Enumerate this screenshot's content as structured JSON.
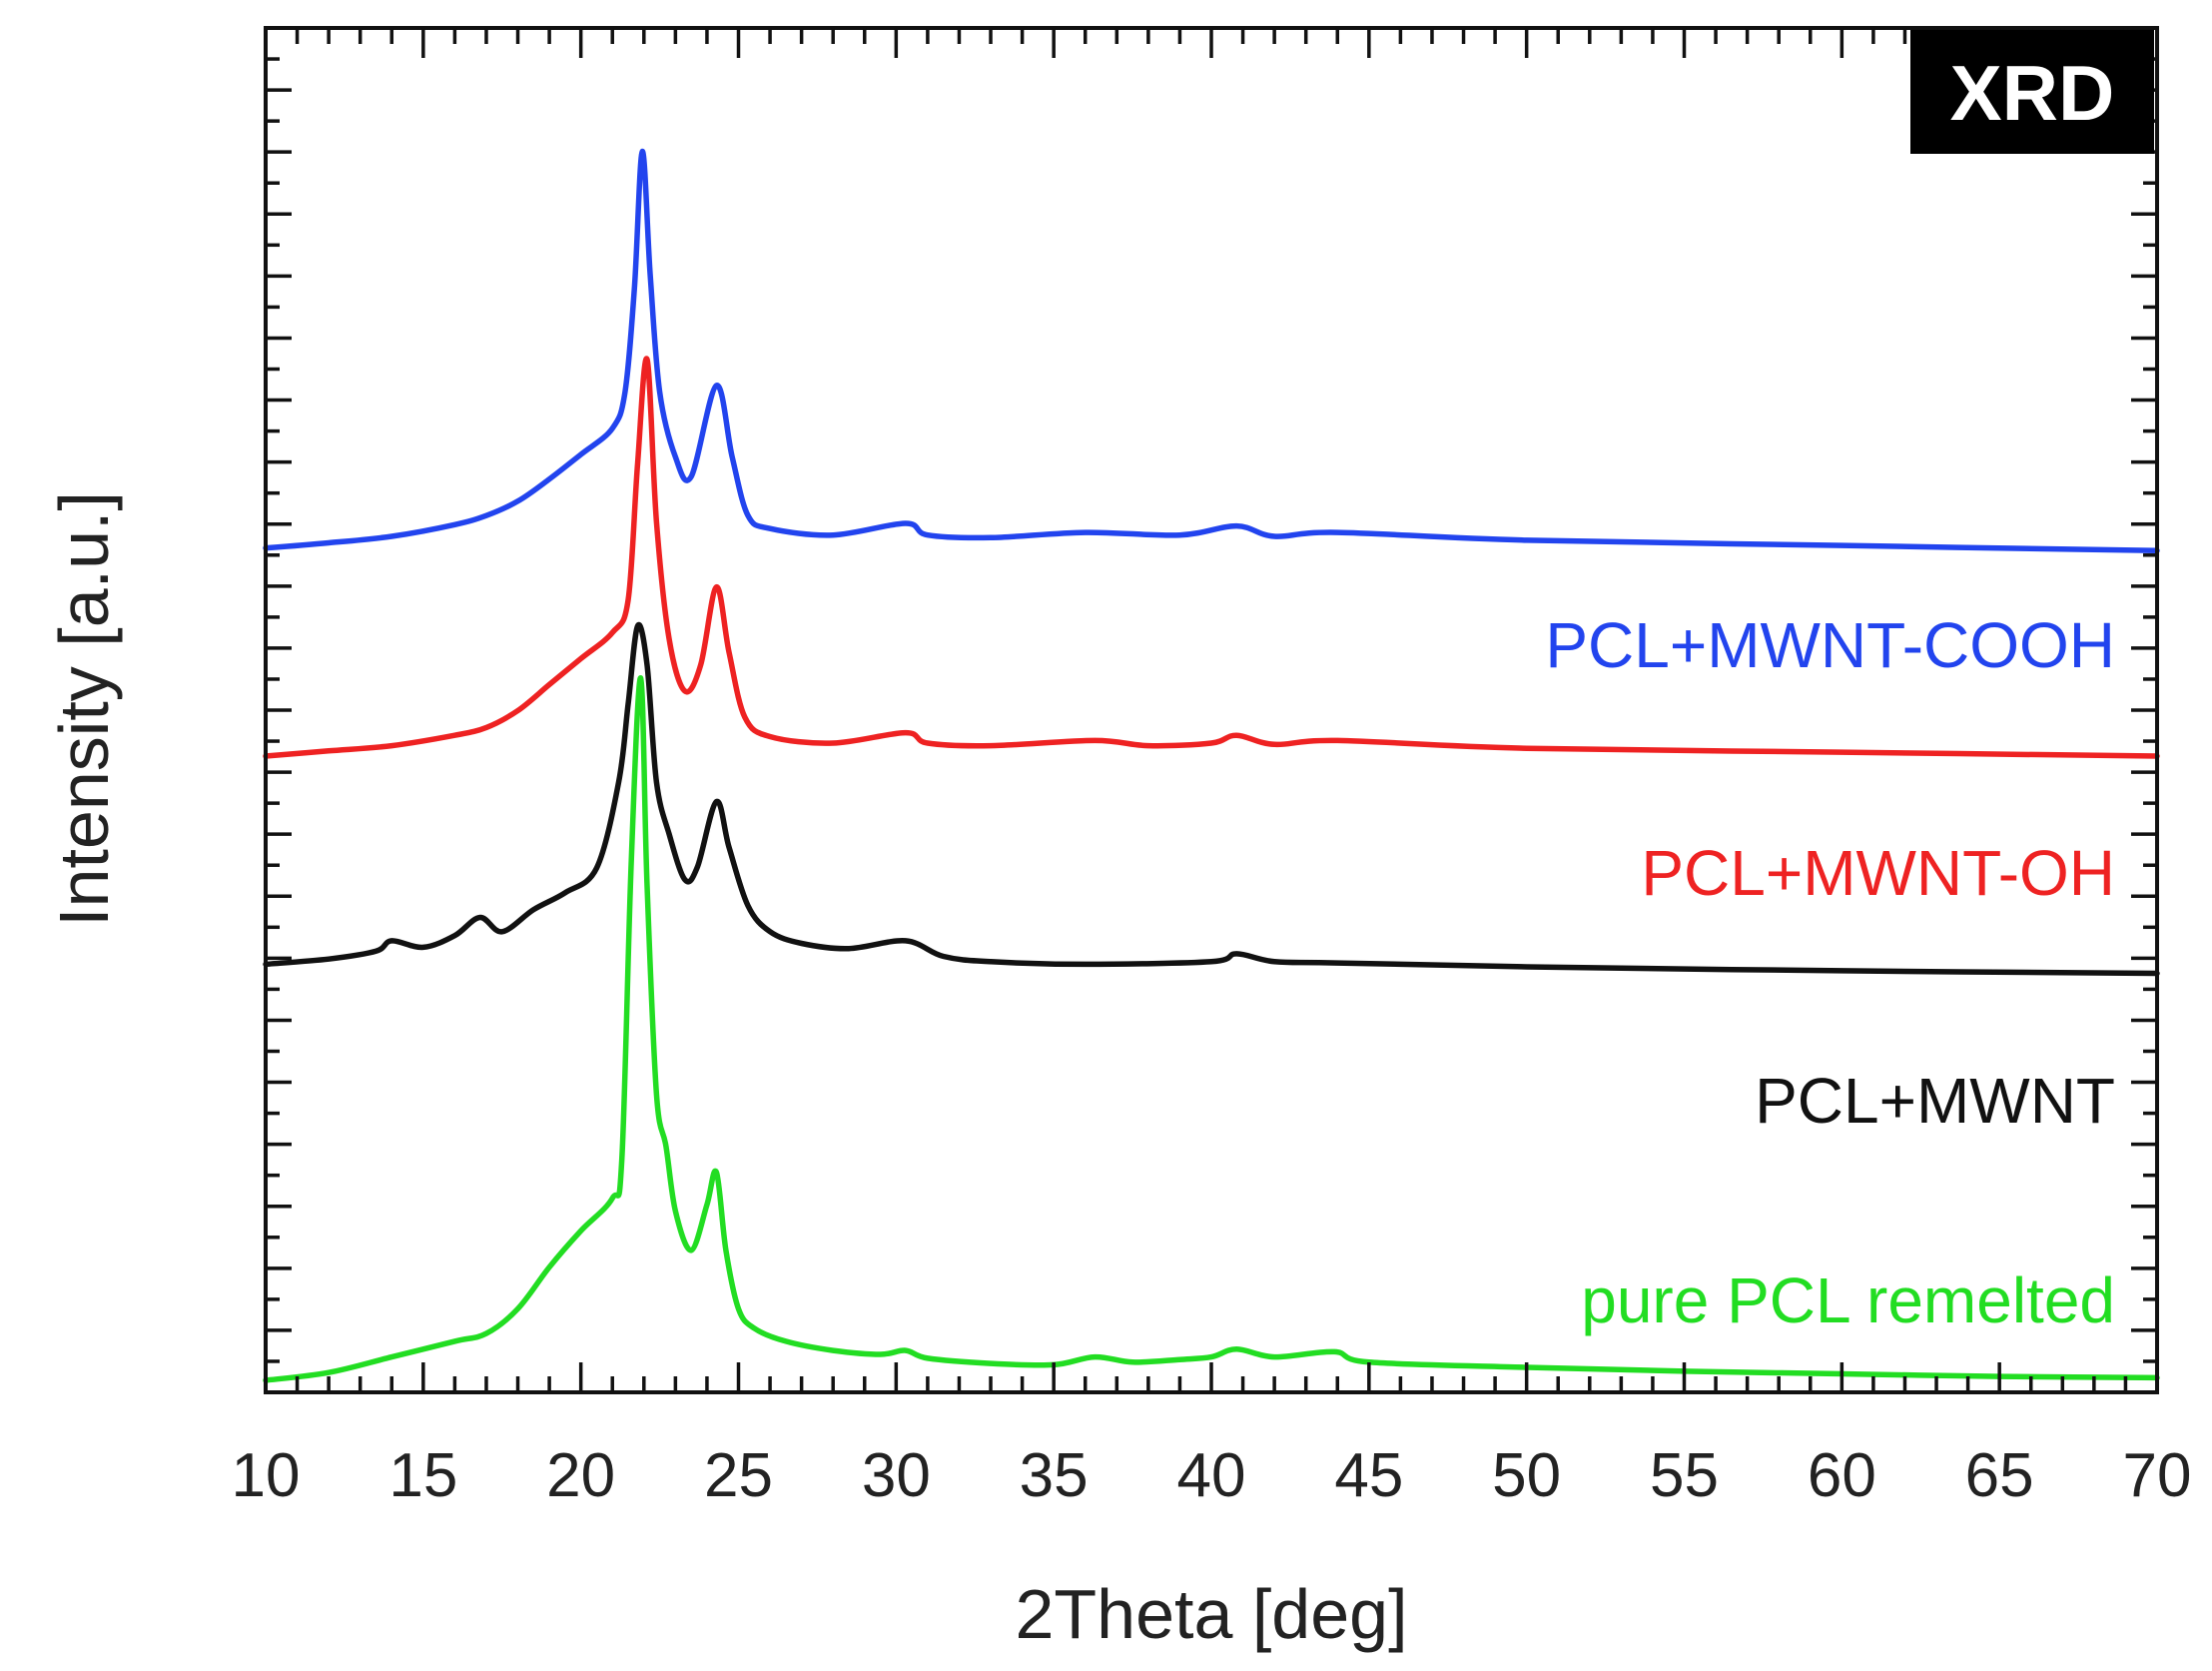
{
  "chart_data": {
    "type": "line",
    "title": "",
    "badge": "XRD",
    "xlabel": "2Theta [deg]",
    "ylabel": "Intensity [a.u.]",
    "xlim": [
      10,
      70
    ],
    "ylim": [
      0,
      100
    ],
    "x_ticks": [
      10,
      15,
      20,
      25,
      30,
      35,
      40,
      45,
      50,
      55,
      60,
      65,
      70
    ],
    "series": [
      {
        "name": "pure PCL remelted",
        "color": "#22dd22",
        "x": [
          10,
          12,
          14,
          16,
          17,
          18,
          19,
          20,
          21,
          21.3,
          21.6,
          21.9,
          22.1,
          22.4,
          22.7,
          23.0,
          23.5,
          24.0,
          24.3,
          24.6,
          25.0,
          25.5,
          26.5,
          28,
          29.5,
          30.3,
          31,
          33,
          35,
          36.3,
          37.5,
          39,
          40,
          40.8,
          42,
          43.9,
          45,
          50,
          55,
          60,
          65,
          70
        ],
        "values": [
          0,
          0.6,
          1.8,
          3,
          3.6,
          5.5,
          8.7,
          11.5,
          14,
          17,
          40,
          54,
          38,
          22,
          18,
          13,
          10,
          13.5,
          16,
          10,
          5.5,
          4,
          3,
          2.3,
          2,
          2.3,
          1.7,
          1.3,
          1.2,
          1.8,
          1.4,
          1.6,
          1.8,
          2.4,
          1.8,
          2.2,
          1.4,
          1,
          0.7,
          0.5,
          0.3,
          0.2
        ]
      },
      {
        "name": "PCL+MWNT",
        "color": "#111111",
        "x": [
          10,
          12,
          13.5,
          14,
          15,
          16,
          16.8,
          17.5,
          18.5,
          19.5,
          20.5,
          21.2,
          21.5,
          21.8,
          22.1,
          22.4,
          22.8,
          23.3,
          23.7,
          24.3,
          24.7,
          25.3,
          26,
          27,
          28.5,
          30.3,
          31.5,
          33,
          36,
          40,
          40.8,
          42,
          44,
          50,
          60,
          70
        ],
        "values": [
          32,
          32.4,
          33,
          33.8,
          33.3,
          34.2,
          35.6,
          34.5,
          36.2,
          37.5,
          39.4,
          46,
          52,
          58,
          55,
          46,
          42,
          38.5,
          39.5,
          44.5,
          41,
          36.5,
          34.5,
          33.6,
          33.2,
          33.8,
          32.6,
          32.2,
          32,
          32.2,
          32.8,
          32.2,
          32.1,
          31.8,
          31.5,
          31.3
        ]
      },
      {
        "name": "PCL+MWNT-OH",
        "color": "#ee2222",
        "x": [
          10,
          12,
          14,
          16,
          17,
          18,
          19,
          20,
          21,
          21.5,
          21.8,
          22.1,
          22.4,
          22.8,
          23.3,
          23.8,
          24.3,
          24.7,
          25.2,
          26,
          28,
          30.3,
          31,
          33,
          36.3,
          38,
          40,
          40.8,
          42,
          44,
          50,
          60,
          70
        ],
        "values": [
          48,
          48.4,
          48.8,
          49.6,
          50.2,
          51.5,
          53.5,
          55.5,
          57.5,
          60,
          70.5,
          78.5,
          66,
          57,
          53,
          55,
          61,
          56,
          51,
          49.5,
          49,
          49.8,
          49,
          48.8,
          49.2,
          48.8,
          49,
          49.6,
          48.9,
          49.2,
          48.6,
          48.3,
          48
        ]
      },
      {
        "name": "PCL+MWNT-COOH",
        "color": "#2244ee",
        "x": [
          10,
          12,
          14,
          16,
          17,
          18,
          19,
          20,
          21,
          21.4,
          21.7,
          21.95,
          22.2,
          22.5,
          23.0,
          23.5,
          24.3,
          24.8,
          25.3,
          26,
          28,
          30.3,
          31,
          33,
          36,
          39,
          40.8,
          42,
          44,
          50,
          60,
          70
        ],
        "values": [
          64,
          64.4,
          64.9,
          65.8,
          66.5,
          67.6,
          69.3,
          71.2,
          73.2,
          76,
          84,
          94.5,
          85,
          76,
          71,
          69.5,
          76.5,
          71,
          66.5,
          65.5,
          65,
          65.9,
          65,
          64.8,
          65.2,
          65,
          65.7,
          64.9,
          65.2,
          64.6,
          64.2,
          63.8
        ]
      }
    ]
  }
}
